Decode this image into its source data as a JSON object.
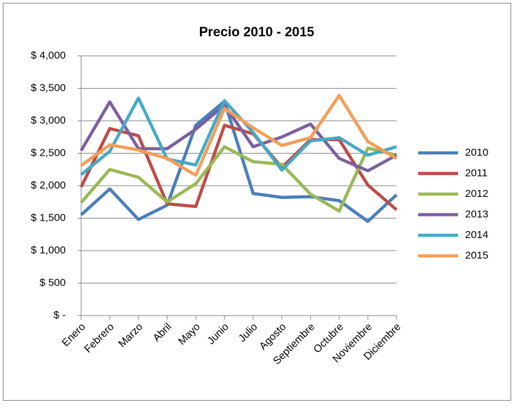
{
  "chart_data": {
    "type": "line",
    "title": "Precio 2010 - 2015",
    "categories": [
      "Enero",
      "Febrero",
      "Marzo",
      "Abril",
      "Mayo",
      "Junio",
      "Julio",
      "Agosto",
      "Septiembre",
      "Octubre",
      "Noviembre",
      "Diciembre"
    ],
    "series": [
      {
        "name": "2010",
        "color": "#4a7ebb",
        "values": [
          1550,
          1950,
          1480,
          1700,
          2930,
          3300,
          1880,
          1820,
          1830,
          1770,
          1450,
          1860
        ]
      },
      {
        "name": "2011",
        "color": "#be4b48",
        "values": [
          1980,
          2880,
          2770,
          1720,
          1680,
          2930,
          2800,
          2280,
          2710,
          2710,
          2010,
          1630
        ]
      },
      {
        "name": "2012",
        "color": "#98b954",
        "values": [
          1740,
          2250,
          2130,
          1750,
          2030,
          2600,
          2370,
          2330,
          1870,
          1610,
          2580,
          2470
        ]
      },
      {
        "name": "2013",
        "color": "#7d5fa0",
        "values": [
          2540,
          3290,
          2570,
          2570,
          2870,
          3240,
          2600,
          2750,
          2950,
          2420,
          2230,
          2470
        ]
      },
      {
        "name": "2014",
        "color": "#46aac5",
        "values": [
          2170,
          2530,
          3350,
          2410,
          2320,
          3310,
          2820,
          2240,
          2690,
          2740,
          2470,
          2600
        ]
      },
      {
        "name": "2015",
        "color": "#f59d56",
        "values": [
          2310,
          2630,
          2550,
          2420,
          2160,
          3190,
          2890,
          2620,
          2740,
          3390,
          2680,
          2420
        ]
      }
    ],
    "ylim": [
      0,
      4000
    ],
    "yticks": [
      {
        "value": 0,
        "label": "$ -"
      },
      {
        "value": 500,
        "label": "$ 500"
      },
      {
        "value": 1000,
        "label": "$ 1,000"
      },
      {
        "value": 1500,
        "label": "$ 1,500"
      },
      {
        "value": 2000,
        "label": "$ 2,000"
      },
      {
        "value": 2500,
        "label": "$ 2,500"
      },
      {
        "value": 3000,
        "label": "$ 3,000"
      },
      {
        "value": 3500,
        "label": "$ 3,500"
      },
      {
        "value": 4000,
        "label": "$ 4,000"
      }
    ],
    "grid": true,
    "legend": "right"
  }
}
